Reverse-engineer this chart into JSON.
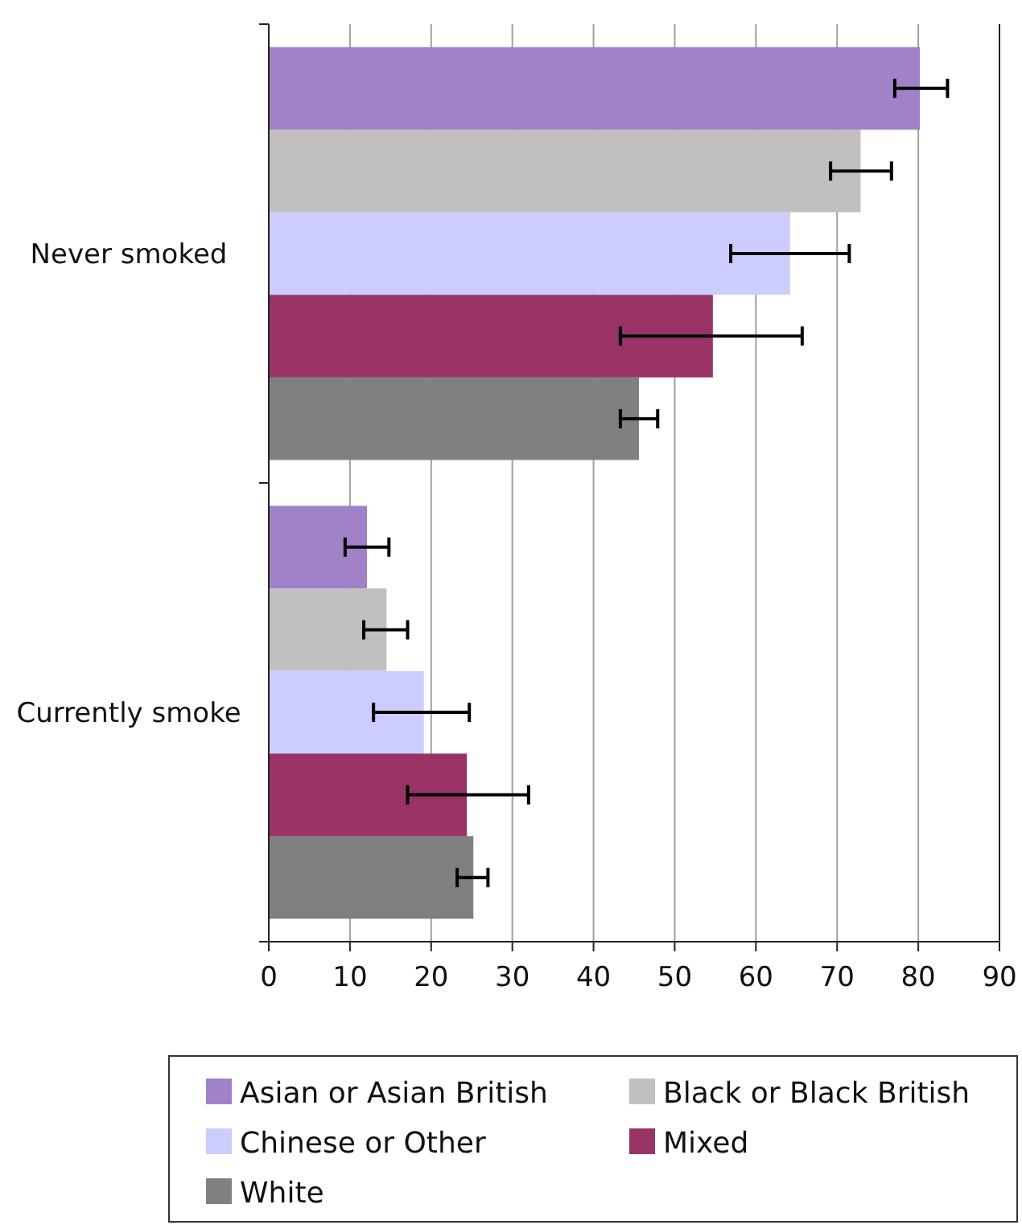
{
  "chart_data": {
    "type": "bar",
    "orientation": "horizontal",
    "categories": [
      "Never smoked",
      "Currently smoke"
    ],
    "series": [
      {
        "name": "Asian or Asian British",
        "color": "#a082c8",
        "values": [
          80.2,
          12.1
        ],
        "errors": [
          [
            77.1,
            83.6
          ],
          [
            9.4,
            14.8
          ]
        ]
      },
      {
        "name": "Black or Black British",
        "color": "#c0c0c0",
        "values": [
          72.9,
          14.5
        ],
        "errors": [
          [
            69.2,
            76.7
          ],
          [
            11.7,
            17.1
          ]
        ]
      },
      {
        "name": "Chinese or Other",
        "color": "#ccccff",
        "values": [
          64.2,
          19.1
        ],
        "errors": [
          [
            56.9,
            71.5
          ],
          [
            12.9,
            24.7
          ]
        ]
      },
      {
        "name": "Mixed",
        "color": "#993366",
        "values": [
          54.7,
          24.4
        ],
        "errors": [
          [
            43.3,
            65.7
          ],
          [
            17.1,
            32.0
          ]
        ]
      },
      {
        "name": "White",
        "color": "#808080",
        "values": [
          45.6,
          25.2
        ],
        "errors": [
          [
            43.3,
            47.9
          ],
          [
            23.2,
            27.0
          ]
        ]
      }
    ],
    "xlim": [
      0,
      90
    ],
    "xticks": [
      0,
      10,
      20,
      30,
      40,
      50,
      60,
      70,
      80,
      90
    ],
    "grid": "x",
    "legend": "bottom"
  }
}
